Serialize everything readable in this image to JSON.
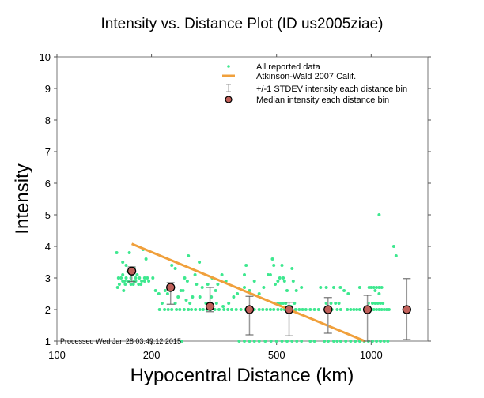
{
  "chart_data": {
    "type": "scatter",
    "title": "Intensity vs. Distance Plot (ID us2005ziae)",
    "xlabel": "Hypocentral Distance (km)",
    "ylabel": "Intensity",
    "xscale": "log",
    "xlim": [
      100,
      1515
    ],
    "ylim": [
      1,
      10
    ],
    "xticks": [
      100,
      200,
      500,
      1000
    ],
    "xtick_labels": [
      "100",
      "200",
      "500",
      "1000"
    ],
    "yticks": [
      1,
      2,
      3,
      4,
      5,
      6,
      7,
      8,
      9,
      10
    ],
    "ytick_labels": [
      "1",
      "2",
      "3",
      "4",
      "5",
      "6",
      "7",
      "8",
      "9",
      "10"
    ],
    "grid": false,
    "legend_position": "top-right",
    "legend": [
      {
        "label": "All reported data",
        "marker": "dot",
        "color": "#3ee88f"
      },
      {
        "label": "Atkinson-Wald 2007 Calif.",
        "marker": "line",
        "color": "#f0a03c"
      },
      {
        "label": "+/-1 STDEV intensity each distance bin",
        "marker": "errorbar",
        "color": "#888888"
      },
      {
        "label": "Median intensity each distance bin",
        "marker": "circle",
        "color": "#c0605a"
      }
    ],
    "annotation": "Processed Wed Jan 28 03:49:12 2015",
    "series": [
      {
        "name": "All reported data",
        "type": "scatter",
        "color": "#3ee88f",
        "points": [
          [
            155,
            3.8
          ],
          [
            162,
            3.5
          ],
          [
            166,
            3.4
          ],
          [
            170,
            3.8
          ],
          [
            176,
            3.3
          ],
          [
            188,
            3.9
          ],
          [
            192,
            3.6
          ],
          [
            157,
            3.0
          ],
          [
            160,
            3.0
          ],
          [
            162,
            3.1
          ],
          [
            164,
            2.9
          ],
          [
            166,
            3.0
          ],
          [
            168,
            3.2
          ],
          [
            170,
            2.9
          ],
          [
            172,
            3.0
          ],
          [
            174,
            3.1
          ],
          [
            176,
            2.9
          ],
          [
            178,
            3.0
          ],
          [
            180,
            3.1
          ],
          [
            183,
            3.0
          ],
          [
            186,
            2.9
          ],
          [
            190,
            3.0
          ],
          [
            194,
            3.0
          ],
          [
            158,
            2.8
          ],
          [
            162,
            2.9
          ],
          [
            165,
            2.8
          ],
          [
            168,
            2.9
          ],
          [
            172,
            2.8
          ],
          [
            175,
            2.8
          ],
          [
            178,
            2.9
          ],
          [
            182,
            2.8
          ],
          [
            185,
            2.8
          ],
          [
            190,
            2.9
          ],
          [
            196,
            2.9
          ],
          [
            156,
            2.7
          ],
          [
            163,
            2.6
          ],
          [
            202,
            3.0
          ],
          [
            206,
            2.6
          ],
          [
            211,
            2.5
          ],
          [
            216,
            2.2
          ],
          [
            221,
            2.6
          ],
          [
            225,
            2.5
          ],
          [
            230,
            2.6
          ],
          [
            235,
            2.7
          ],
          [
            238,
            2.2
          ],
          [
            243,
            2.4
          ],
          [
            248,
            2.6
          ],
          [
            252,
            2.6
          ],
          [
            258,
            2.3
          ],
          [
            265,
            2.2
          ],
          [
            270,
            2.4
          ],
          [
            212,
            2.0
          ],
          [
            220,
            2.0
          ],
          [
            226,
            2.0
          ],
          [
            232,
            2.0
          ],
          [
            240,
            2.0
          ],
          [
            246,
            2.0
          ],
          [
            254,
            2.0
          ],
          [
            262,
            2.0
          ],
          [
            268,
            2.0
          ],
          [
            276,
            2.0
          ],
          [
            285,
            2.0
          ],
          [
            292,
            2.0
          ],
          [
            300,
            2.0
          ],
          [
            308,
            2.0
          ],
          [
            318,
            2.0
          ],
          [
            328,
            2.0
          ],
          [
            232,
            3.4
          ],
          [
            238,
            3.3
          ],
          [
            262,
            3.7
          ],
          [
            284,
            3.5
          ],
          [
            255,
            3.0
          ],
          [
            260,
            2.9
          ],
          [
            275,
            3.1
          ],
          [
            278,
            2.8
          ],
          [
            290,
            2.7
          ],
          [
            302,
            2.8
          ],
          [
            312,
            3.0
          ],
          [
            320,
            2.6
          ],
          [
            325,
            2.8
          ],
          [
            335,
            3.1
          ],
          [
            345,
            2.9
          ],
          [
            285,
            2.4
          ],
          [
            298,
            2.2
          ],
          [
            310,
            2.4
          ],
          [
            322,
            2.2
          ],
          [
            338,
            2.1
          ],
          [
            352,
            2.2
          ],
          [
            365,
            2.4
          ],
          [
            375,
            2.5
          ],
          [
            340,
            2.0
          ],
          [
            350,
            2.0
          ],
          [
            360,
            2.0
          ],
          [
            372,
            2.0
          ],
          [
            385,
            2.0
          ],
          [
            398,
            2.0
          ],
          [
            410,
            2.0
          ],
          [
            425,
            2.0
          ],
          [
            440,
            2.0
          ],
          [
            452,
            2.0
          ],
          [
            465,
            2.0
          ],
          [
            478,
            2.0
          ],
          [
            490,
            2.0
          ],
          [
            505,
            2.0
          ],
          [
            518,
            2.0
          ],
          [
            530,
            2.0
          ],
          [
            545,
            2.0
          ],
          [
            560,
            2.0
          ],
          [
            575,
            2.0
          ],
          [
            590,
            2.0
          ],
          [
            605,
            2.0
          ],
          [
            620,
            2.0
          ],
          [
            640,
            2.0
          ],
          [
            660,
            2.0
          ],
          [
            680,
            2.0
          ],
          [
            395,
            2.7
          ],
          [
            410,
            2.6
          ],
          [
            425,
            2.9
          ],
          [
            440,
            2.5
          ],
          [
            455,
            2.7
          ],
          [
            470,
            3.1
          ],
          [
            478,
            3.1
          ],
          [
            485,
            3.6
          ],
          [
            490,
            3.4
          ],
          [
            495,
            2.8
          ],
          [
            505,
            2.9
          ],
          [
            512,
            3.0
          ],
          [
            520,
            3.4
          ],
          [
            525,
            3.0
          ],
          [
            530,
            2.9
          ],
          [
            540,
            2.6
          ],
          [
            560,
            3.3
          ],
          [
            565,
            2.9
          ],
          [
            578,
            2.6
          ],
          [
            600,
            2.7
          ],
          [
            400,
            3.4
          ],
          [
            395,
            3.1
          ],
          [
            505,
            2.2
          ],
          [
            515,
            2.2
          ],
          [
            525,
            2.2
          ],
          [
            535,
            2.2
          ],
          [
            545,
            2.1
          ],
          [
            555,
            2.1
          ],
          [
            570,
            2.2
          ],
          [
            690,
            2.7
          ],
          [
            720,
            2.7
          ],
          [
            760,
            2.7
          ],
          [
            798,
            2.7
          ],
          [
            820,
            2.6
          ],
          [
            845,
            2.5
          ],
          [
            920,
            2.7
          ],
          [
            985,
            2.7
          ],
          [
            735,
            2.0
          ],
          [
            750,
            2.0
          ],
          [
            780,
            2.0
          ],
          [
            800,
            2.0
          ],
          [
            840,
            2.0
          ],
          [
            860,
            2.0
          ],
          [
            880,
            2.0
          ],
          [
            900,
            2.0
          ],
          [
            920,
            2.0
          ],
          [
            980,
            2.0
          ],
          [
            1000,
            2.0
          ],
          [
            1020,
            2.0
          ],
          [
            1040,
            2.0
          ],
          [
            1060,
            2.0
          ],
          [
            1080,
            2.0
          ],
          [
            1100,
            2.0
          ],
          [
            1120,
            2.0
          ],
          [
            1140,
            2.0
          ],
          [
            720,
            2.2
          ],
          [
            745,
            2.2
          ],
          [
            770,
            2.2
          ],
          [
            790,
            2.2
          ],
          [
            980,
            2.2
          ],
          [
            1010,
            2.2
          ],
          [
            1030,
            2.2
          ],
          [
            1050,
            2.2
          ],
          [
            1070,
            2.2
          ],
          [
            1090,
            2.2
          ],
          [
            1000,
            2.7
          ],
          [
            1020,
            2.7
          ],
          [
            1040,
            2.7
          ],
          [
            1060,
            2.7
          ],
          [
            1080,
            2.7
          ],
          [
            1030,
            2.6
          ],
          [
            1060,
            2.5
          ],
          [
            1060,
            5.0
          ],
          [
            1180,
            4.0
          ],
          [
            1200,
            3.7
          ],
          [
            250,
            1.0
          ],
          [
            380,
            1.0
          ],
          [
            395,
            1.0
          ],
          [
            410,
            1.0
          ],
          [
            425,
            1.0
          ],
          [
            440,
            1.0
          ],
          [
            460,
            1.0
          ],
          [
            480,
            1.0
          ],
          [
            500,
            1.0
          ],
          [
            520,
            1.0
          ],
          [
            540,
            1.0
          ],
          [
            560,
            1.0
          ],
          [
            580,
            1.0
          ],
          [
            600,
            1.0
          ],
          [
            640,
            1.0
          ],
          [
            660,
            1.0
          ],
          [
            710,
            1.0
          ],
          [
            730,
            1.0
          ],
          [
            760,
            1.0
          ],
          [
            780,
            1.0
          ],
          [
            800,
            1.0
          ],
          [
            830,
            1.0
          ],
          [
            860,
            1.0
          ],
          [
            890,
            1.0
          ],
          [
            920,
            1.0
          ],
          [
            950,
            1.0
          ],
          [
            980,
            1.0
          ],
          [
            1010,
            1.0
          ],
          [
            1040,
            1.0
          ],
          [
            1070,
            1.0
          ],
          [
            1100,
            1.0
          ],
          [
            1130,
            1.0
          ]
        ]
      },
      {
        "name": "Atkinson-Wald 2007 Calif.",
        "type": "line",
        "color": "#f0a03c",
        "x": [
          173,
          955
        ],
        "y": [
          4.08,
          1.0
        ]
      },
      {
        "name": "Median intensity each distance bin",
        "type": "scatter",
        "color": "#c0605a",
        "x": [
          173,
          230,
          307,
          410,
          548,
          729,
          973,
          1298
        ],
        "y": [
          3.22,
          2.7,
          2.1,
          2.0,
          2.0,
          2.0,
          2.0,
          2.0
        ]
      },
      {
        "name": "+/-1 STDEV intensity each distance bin",
        "type": "errorbar",
        "color": "#888888",
        "x": [
          173,
          230,
          307,
          410,
          548,
          729,
          973,
          1298
        ],
        "upper": [
          3.35,
          2.85,
          2.7,
          2.42,
          2.23,
          2.38,
          2.45,
          2.98
        ],
        "lower": [
          2.88,
          2.17,
          1.93,
          1.2,
          1.17,
          1.25,
          1.0,
          1.05
        ]
      }
    ]
  }
}
